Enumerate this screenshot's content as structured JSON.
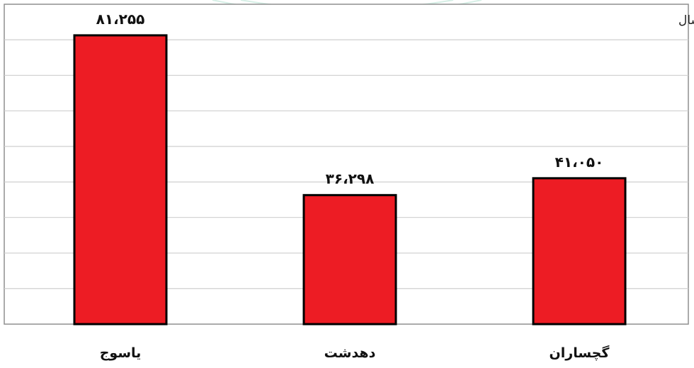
{
  "chart_data": {
    "type": "bar",
    "title": "",
    "subtitle": "",
    "xlabel": "",
    "ylabel": "",
    "unit_note": "ارقام : هزار لیتر در سال",
    "categories": [
      "یاسوج",
      "دهدشت",
      "گچساران"
    ],
    "values": [
      81255,
      36298,
      41050
    ],
    "data_labels": [
      "۸۱،۲۵۵",
      "۳۶،۲۹۸",
      "۴۱،۰۵۰"
    ],
    "ylim": [
      0,
      90000
    ],
    "grid": true,
    "legend": "none",
    "bar_color": "#ed1c24",
    "bar_edge_color": "#000000"
  }
}
